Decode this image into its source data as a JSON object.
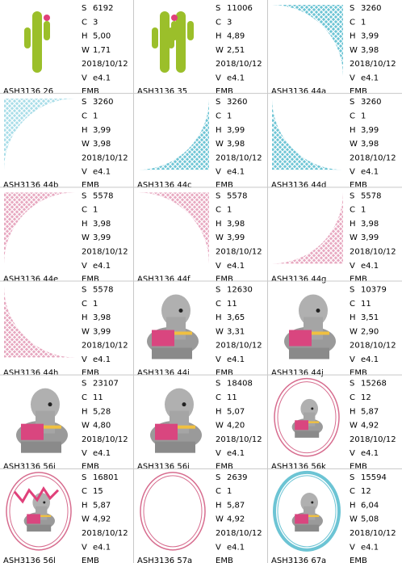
{
  "field_labels": {
    "s": "S",
    "c": "C",
    "h": "H",
    "w": "W",
    "v": "V"
  },
  "cells": [
    {
      "name": "ASH3136 26",
      "s": "6192",
      "c": "3",
      "h": "5,00",
      "w": "1,71",
      "date": "2018/10/12",
      "v": "e4.1",
      "format": "EMB"
    },
    {
      "name": "ASH3136 35",
      "s": "11006",
      "c": "3",
      "h": "4,89",
      "w": "2,51",
      "date": "2018/10/12",
      "v": "e4.1",
      "format": "EMB"
    },
    {
      "name": "ASH3136 44a",
      "s": "3260",
      "c": "1",
      "h": "3,99",
      "w": "3,98",
      "date": "2018/10/12",
      "v": "e4.1",
      "format": "EMB"
    },
    {
      "name": "ASH3136 44b",
      "s": "3260",
      "c": "1",
      "h": "3,99",
      "w": "3,98",
      "date": "2018/10/12",
      "v": "e4.1",
      "format": "EMB"
    },
    {
      "name": "ASH3136 44c",
      "s": "3260",
      "c": "1",
      "h": "3,99",
      "w": "3,98",
      "date": "2018/10/12",
      "v": "e4.1",
      "format": "EMB"
    },
    {
      "name": "ASH3136 44d",
      "s": "3260",
      "c": "1",
      "h": "3,99",
      "w": "3,98",
      "date": "2018/10/12",
      "v": "e4.1",
      "format": "EMB"
    },
    {
      "name": "ASH3136 44e",
      "s": "5578",
      "c": "1",
      "h": "3,98",
      "w": "3,99",
      "date": "2018/10/12",
      "v": "e4.1",
      "format": "EMB"
    },
    {
      "name": "ASH3136 44f",
      "s": "5578",
      "c": "1",
      "h": "3,98",
      "w": "3,99",
      "date": "2018/10/12",
      "v": "e4.1",
      "format": "EMB"
    },
    {
      "name": "ASH3136 44g",
      "s": "5578",
      "c": "1",
      "h": "3,98",
      "w": "3,99",
      "date": "2018/10/12",
      "v": "e4.1",
      "format": "EMB"
    },
    {
      "name": "ASH3136 44h",
      "s": "5578",
      "c": "1",
      "h": "3,98",
      "w": "3,99",
      "date": "2018/10/12",
      "v": "e4.1",
      "format": "EMB"
    },
    {
      "name": "ASH3136 44i",
      "s": "12630",
      "c": "11",
      "h": "3,65",
      "w": "3,31",
      "date": "2018/10/12",
      "v": "e4.1",
      "format": "EMB"
    },
    {
      "name": "ASH3136 44j",
      "s": "10379",
      "c": "11",
      "h": "3,51",
      "w": "2,90",
      "date": "2018/10/12",
      "v": "e4.1",
      "format": "EMB"
    },
    {
      "name": "ASH3136 56i",
      "s": "23107",
      "c": "11",
      "h": "5,28",
      "w": "4,80",
      "date": "2018/10/12",
      "v": "e4.1",
      "format": "EMB"
    },
    {
      "name": "ASH3136 56i",
      "s": "18408",
      "c": "11",
      "h": "5,07",
      "w": "4,20",
      "date": "2018/10/12",
      "v": "e4.1",
      "format": "EMB"
    },
    {
      "name": "ASH3136 56k",
      "s": "15268",
      "c": "12",
      "h": "5,87",
      "w": "4,92",
      "date": "2018/10/12",
      "v": "e4.1",
      "format": "EMB"
    },
    {
      "name": "ASH3136 56l",
      "s": "16801",
      "c": "15",
      "h": "5,87",
      "w": "4,92",
      "date": "2018/10/12",
      "v": "e4.1",
      "format": "EMB"
    },
    {
      "name": "ASH3136 57a",
      "s": "2639",
      "c": "1",
      "h": "5,87",
      "w": "4,92",
      "date": "2018/10/12",
      "v": "e4.1",
      "format": "EMB"
    },
    {
      "name": "ASH3136 67a",
      "s": "15594",
      "c": "12",
      "h": "6,04",
      "w": "5,08",
      "date": "2018/10/12",
      "v": "e4.1",
      "format": "EMB"
    }
  ]
}
